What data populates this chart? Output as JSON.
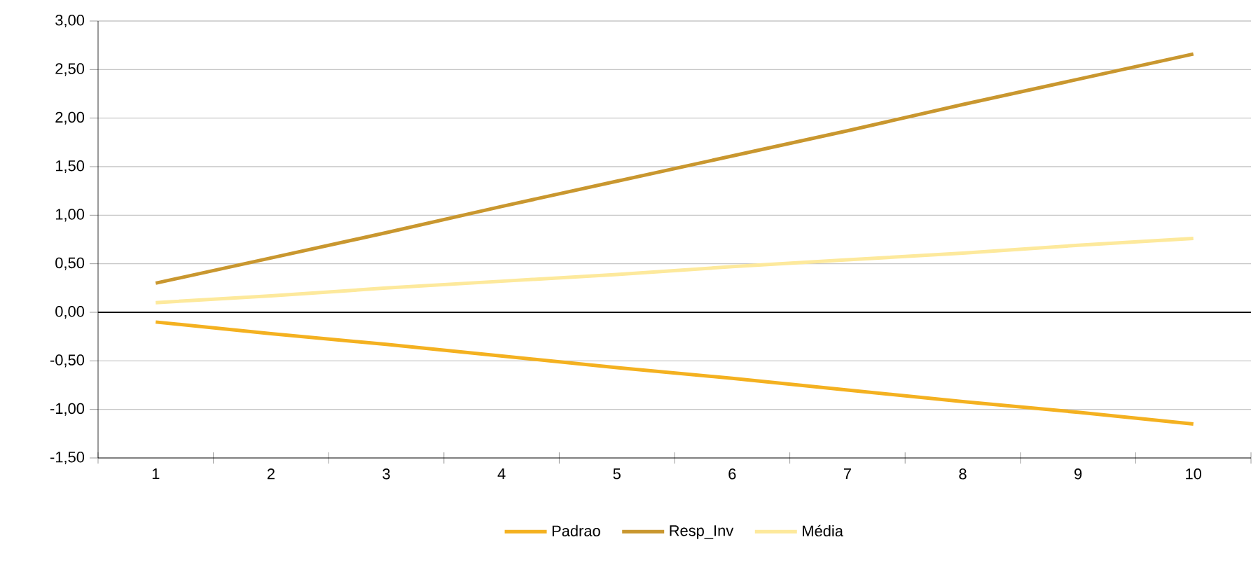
{
  "chart_data": {
    "type": "line",
    "categories": [
      "1",
      "2",
      "3",
      "4",
      "5",
      "6",
      "7",
      "8",
      "9",
      "10"
    ],
    "series": [
      {
        "name": "Padrao",
        "color": "#f4b120",
        "values": [
          -0.1,
          -0.22,
          -0.33,
          -0.45,
          -0.57,
          -0.68,
          -0.8,
          -0.92,
          -1.03,
          -1.15
        ]
      },
      {
        "name": "Resp_Inv",
        "color": "#c9972f",
        "values": [
          0.3,
          0.56,
          0.82,
          1.09,
          1.35,
          1.61,
          1.87,
          2.14,
          2.4,
          2.66
        ]
      },
      {
        "name": "Média",
        "color": "#fde99c",
        "values": [
          0.1,
          0.17,
          0.25,
          0.32,
          0.39,
          0.47,
          0.54,
          0.61,
          0.69,
          0.76
        ]
      }
    ],
    "ylim": [
      -1.5,
      3.0
    ],
    "yticks": [
      {
        "value": -1.5,
        "label": "-1,50"
      },
      {
        "value": -1.0,
        "label": "-1,00"
      },
      {
        "value": -0.5,
        "label": "-0,50"
      },
      {
        "value": 0.0,
        "label": "0,00"
      },
      {
        "value": 0.5,
        "label": "0,50"
      },
      {
        "value": 1.0,
        "label": "1,00"
      },
      {
        "value": 1.5,
        "label": "1,50"
      },
      {
        "value": 2.0,
        "label": "2,00"
      },
      {
        "value": 2.5,
        "label": "2,50"
      },
      {
        "value": 3.0,
        "label": "3,00"
      }
    ],
    "ref_lines": [
      {
        "axis": "y",
        "value": 0,
        "color": "#000000"
      }
    ],
    "grid": "y",
    "legend": "bottom",
    "marker": "none",
    "line_style": "solid"
  }
}
